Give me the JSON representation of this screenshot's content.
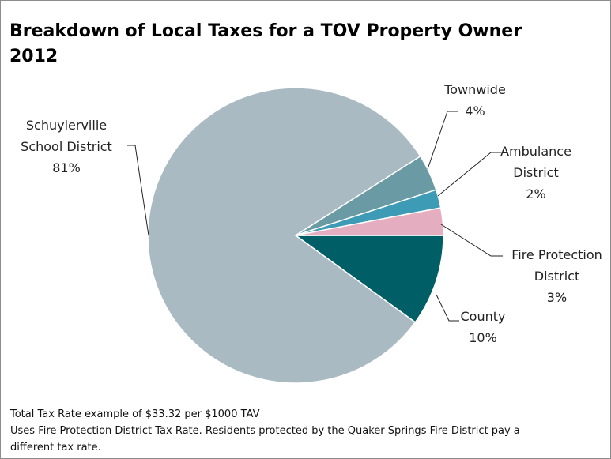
{
  "chart_data": {
    "type": "pie",
    "title": "Breakdown of  Local Taxes for a TOV Property Owner",
    "subtitle": "2012",
    "categories": [
      "County",
      "Schuylerville School District",
      "Townwide",
      "Ambulance District",
      "Fire Protection District"
    ],
    "values": [
      10,
      81,
      4,
      2,
      3
    ],
    "value_labels": [
      "10%",
      "81%",
      "4%",
      "2%",
      "3%"
    ],
    "colors": [
      "#005f66",
      "#a9bac2",
      "#6a9aa3",
      "#3d9bb5",
      "#e4adc0"
    ],
    "notes": [
      "Total Tax Rate example of $33.32 per $1000 TAV",
      "Uses Fire Protection District Tax Rate. Residents protected by the Quaker Springs Fire District pay a different tax rate."
    ]
  }
}
